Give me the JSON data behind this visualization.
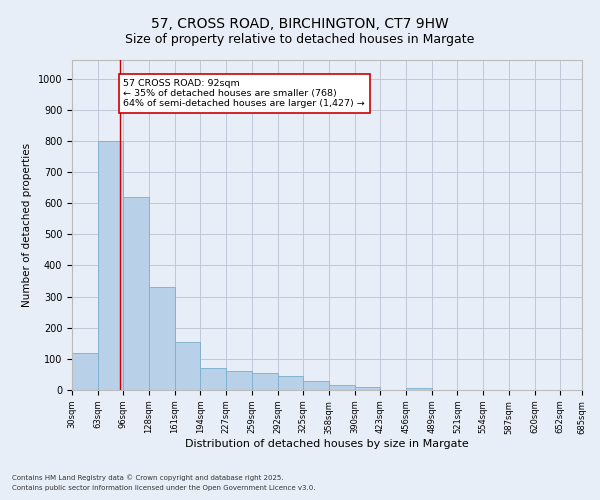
{
  "title_line1": "57, CROSS ROAD, BIRCHINGTON, CT7 9HW",
  "title_line2": "Size of property relative to detached houses in Margate",
  "xlabel": "Distribution of detached houses by size in Margate",
  "ylabel": "Number of detached properties",
  "bar_color": "#b8d0e8",
  "bar_edge_color": "#7aafd0",
  "background_color": "#e8eef8",
  "annotation_text": "57 CROSS ROAD: 92sqm\n← 35% of detached houses are smaller (768)\n64% of semi-detached houses are larger (1,427) →",
  "vline_x": 92,
  "vline_color": "#cc0000",
  "footnote1": "Contains HM Land Registry data © Crown copyright and database right 2025.",
  "footnote2": "Contains public sector information licensed under the Open Government Licence v3.0.",
  "bin_edges": [
    30,
    63,
    96,
    129,
    162,
    195,
    228,
    261,
    294,
    327,
    360,
    393,
    426,
    459,
    492,
    525,
    558,
    591,
    624,
    657,
    685
  ],
  "bin_labels": [
    "30sqm",
    "63sqm",
    "96sqm",
    "128sqm",
    "161sqm",
    "194sqm",
    "227sqm",
    "259sqm",
    "292sqm",
    "325sqm",
    "358sqm",
    "390sqm",
    "423sqm",
    "456sqm",
    "489sqm",
    "521sqm",
    "554sqm",
    "587sqm",
    "620sqm",
    "652sqm",
    "685sqm"
  ],
  "bar_heights": [
    120,
    800,
    620,
    330,
    155,
    70,
    60,
    55,
    45,
    30,
    15,
    10,
    0,
    5,
    0,
    0,
    0,
    0,
    0,
    0
  ],
  "ylim": [
    0,
    1060
  ],
  "yticks": [
    0,
    100,
    200,
    300,
    400,
    500,
    600,
    700,
    800,
    900,
    1000
  ],
  "grid_color": "#c0c8d8",
  "annotation_fontsize": 6.8,
  "title_fontsize1": 10,
  "title_fontsize2": 9,
  "ylabel_fontsize": 7.5,
  "xlabel_fontsize": 8,
  "tick_fontsize": 6,
  "footnote_fontsize": 5
}
